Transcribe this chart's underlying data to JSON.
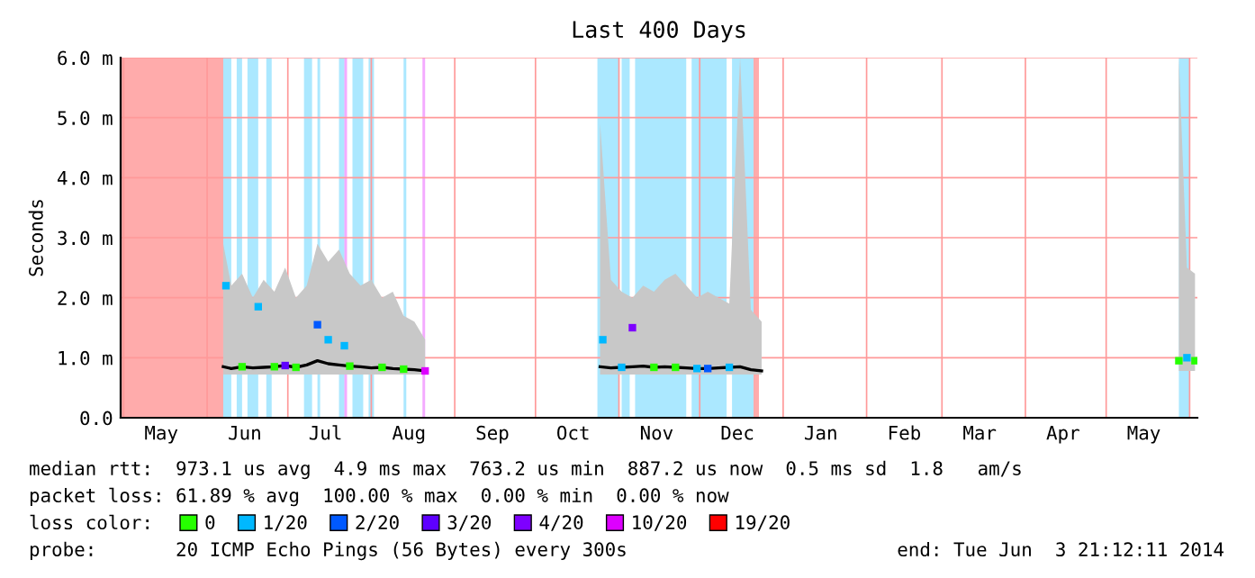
{
  "chart_data": {
    "type": "line",
    "title": "Last 400 Days",
    "ylabel": "Seconds",
    "xlim": [
      "2013-04-29T21:12",
      "2014-06-03T21:12"
    ],
    "xticks": [
      {
        "value": "2013-05-01",
        "label": null
      },
      {
        "value": "2013-05-15",
        "label": "May"
      },
      {
        "value": "2013-06-01",
        "label": null
      },
      {
        "value": "2013-06-15",
        "label": "Jun"
      },
      {
        "value": "2013-07-01",
        "label": null
      },
      {
        "value": "2013-07-15",
        "label": "Jul"
      },
      {
        "value": "2013-08-01",
        "label": null
      },
      {
        "value": "2013-08-15",
        "label": "Aug"
      },
      {
        "value": "2013-09-01",
        "label": null
      },
      {
        "value": "2013-09-15",
        "label": "Sep"
      },
      {
        "value": "2013-10-01",
        "label": null
      },
      {
        "value": "2013-10-15",
        "label": "Oct"
      },
      {
        "value": "2013-11-01",
        "label": null
      },
      {
        "value": "2013-11-15",
        "label": "Nov"
      },
      {
        "value": "2013-12-01",
        "label": null
      },
      {
        "value": "2013-12-15",
        "label": "Dec"
      },
      {
        "value": "2014-01-01",
        "label": null
      },
      {
        "value": "2014-01-15",
        "label": "Jan"
      },
      {
        "value": "2014-02-01",
        "label": null
      },
      {
        "value": "2014-02-15",
        "label": "Feb"
      },
      {
        "value": "2014-03-01",
        "label": null
      },
      {
        "value": "2014-03-15",
        "label": "Mar"
      },
      {
        "value": "2014-04-01",
        "label": null
      },
      {
        "value": "2014-04-15",
        "label": "Apr"
      },
      {
        "value": "2014-05-01",
        "label": null
      },
      {
        "value": "2014-05-15",
        "label": "May"
      },
      {
        "value": "2014-06-01",
        "label": null
      }
    ],
    "ylim": [
      0,
      6
    ],
    "yticks": [
      {
        "value": 0,
        "label": "0.0"
      },
      {
        "value": 1,
        "label": "1.0 m"
      },
      {
        "value": 2,
        "label": "2.0 m"
      },
      {
        "value": 3,
        "label": "3.0 m"
      },
      {
        "value": 4,
        "label": "4.0 m"
      },
      {
        "value": 5,
        "label": "5.0 m"
      },
      {
        "value": 6,
        "label": "6.0 m"
      }
    ],
    "grid": true,
    "legend": "bottom",
    "series": [
      {
        "color": "#000000",
        "marker": "none",
        "line_style": "solid",
        "x": [
          "2013-06-07",
          "2013-06-10",
          "2013-06-14",
          "2013-06-18",
          "2013-06-22",
          "2013-06-26",
          "2013-06-30",
          "2013-07-04",
          "2013-07-08",
          "2013-07-12",
          "2013-07-16",
          "2013-07-20",
          "2013-07-24",
          "2013-07-28",
          "2013-08-01",
          "2013-08-05",
          "2013-08-09",
          "2013-08-13",
          "2013-08-17",
          "2013-08-21",
          "2013-09-15",
          "2013-10-25",
          "2013-10-29",
          "2013-11-02",
          "2013-11-06",
          "2013-11-10",
          "2013-11-14",
          "2013-11-18",
          "2013-11-22",
          "2013-11-26",
          "2013-11-30",
          "2013-12-04",
          "2013-12-08",
          "2013-12-12",
          "2013-12-16",
          "2013-12-20",
          "2013-12-24",
          "2014-03-01",
          "2014-05-28",
          "2014-05-31",
          "2014-06-03"
        ],
        "values": [
          0.85,
          0.82,
          0.85,
          0.83,
          0.84,
          0.85,
          0.87,
          0.84,
          0.88,
          0.95,
          0.9,
          0.88,
          0.86,
          0.85,
          0.83,
          0.84,
          0.82,
          0.81,
          0.8,
          0.78,
          null,
          0.85,
          0.83,
          0.84,
          0.85,
          0.86,
          0.84,
          0.85,
          0.84,
          0.83,
          0.82,
          0.82,
          0.83,
          0.84,
          0.85,
          0.8,
          0.78,
          null,
          null,
          null,
          null
        ],
        "lower": [
          0.72,
          0.72,
          0.72,
          0.72,
          0.72,
          0.72,
          0.72,
          0.72,
          0.72,
          0.72,
          0.72,
          0.72,
          0.72,
          0.72,
          0.72,
          0.72,
          0.72,
          0.72,
          0.72,
          0.72,
          null,
          0.72,
          0.72,
          0.72,
          0.72,
          0.72,
          0.72,
          0.72,
          0.72,
          0.72,
          0.72,
          0.72,
          0.72,
          0.72,
          0.72,
          0.72,
          0.72,
          null,
          0.78,
          0.78,
          0.78
        ],
        "upper": [
          2.9,
          2.2,
          2.4,
          2.0,
          2.3,
          2.1,
          2.5,
          2.0,
          2.2,
          2.9,
          2.6,
          2.8,
          2.4,
          2.2,
          2.3,
          2.0,
          2.1,
          1.7,
          1.6,
          1.3,
          null,
          4.9,
          2.3,
          2.1,
          2.0,
          2.2,
          2.1,
          2.3,
          2.4,
          2.2,
          2.0,
          2.1,
          2.0,
          1.9,
          6.0,
          1.8,
          1.6,
          null,
          6.0,
          2.5,
          2.4
        ]
      },
      {
        "type": "scatter",
        "name": "0",
        "color": "#26ff00",
        "marker": "square",
        "x": [
          "2013-06-14",
          "2013-06-26",
          "2013-07-04",
          "2013-07-24",
          "2013-08-05",
          "2013-08-13",
          "2013-11-14",
          "2013-11-22",
          "2014-05-28",
          "2014-06-03"
        ],
        "values": [
          0.85,
          0.85,
          0.84,
          0.86,
          0.84,
          0.81,
          0.84,
          0.84,
          0.95,
          0.95
        ]
      },
      {
        "type": "scatter",
        "name": "1/20",
        "color": "#00b8ff",
        "marker": "square",
        "x": [
          "2013-06-08",
          "2013-06-20",
          "2013-07-16",
          "2013-07-22",
          "2013-10-26",
          "2013-11-02",
          "2013-11-30",
          "2013-12-12",
          "2014-05-31"
        ],
        "values": [
          2.2,
          1.85,
          1.3,
          1.2,
          1.3,
          0.84,
          0.82,
          0.84,
          1.0
        ]
      },
      {
        "type": "scatter",
        "name": "2/20",
        "color": "#0059ff",
        "marker": "square",
        "x": [
          "2013-07-12",
          "2013-12-04"
        ],
        "values": [
          1.55,
          0.82
        ]
      },
      {
        "type": "scatter",
        "name": "3/20",
        "color": "#5e00ff",
        "marker": "square",
        "x": [
          "2013-06-30"
        ],
        "values": [
          0.87
        ]
      },
      {
        "type": "scatter",
        "name": "4/20",
        "color": "#7e00ff",
        "marker": "square",
        "x": [
          "2013-11-06"
        ],
        "values": [
          1.5
        ]
      },
      {
        "type": "scatter",
        "name": "10/20",
        "color": "#dd00ff",
        "marker": "square",
        "x": [
          "2013-08-21"
        ],
        "values": [
          0.78
        ]
      }
    ],
    "bands": [
      {
        "axis": "x",
        "from": "2013-04-29T21:12",
        "to": "2013-06-07",
        "label": "19/20",
        "color": "#ff0000"
      },
      {
        "axis": "x",
        "from": "2013-12-21",
        "to": "2013-12-23",
        "color": "#ff0000"
      },
      {
        "axis": "x",
        "from": "2013-06-07",
        "to": "2013-06-10",
        "color": "#00b8ff"
      },
      {
        "axis": "x",
        "from": "2013-06-12",
        "to": "2013-06-14",
        "color": "#00b8ff"
      },
      {
        "axis": "x",
        "from": "2013-06-16",
        "to": "2013-06-20",
        "color": "#00b8ff"
      },
      {
        "axis": "x",
        "from": "2013-06-23",
        "to": "2013-06-25",
        "color": "#00b8ff"
      },
      {
        "axis": "x",
        "from": "2013-07-07",
        "to": "2013-07-10",
        "color": "#00b8ff"
      },
      {
        "axis": "x",
        "from": "2013-07-12",
        "to": "2013-07-13",
        "color": "#00b8ff"
      },
      {
        "axis": "x",
        "from": "2013-07-20",
        "to": "2013-07-22",
        "color": "#00b8ff"
      },
      {
        "axis": "x",
        "from": "2013-07-25",
        "to": "2013-07-29",
        "color": "#00b8ff"
      },
      {
        "axis": "x",
        "from": "2013-07-31",
        "to": "2013-08-02",
        "color": "#00b8ff"
      },
      {
        "axis": "x",
        "from": "2013-08-13",
        "to": "2013-08-14",
        "color": "#00b8ff"
      },
      {
        "axis": "x",
        "from": "2013-07-22",
        "to": "2013-07-23",
        "color": "#dd00ff"
      },
      {
        "axis": "x",
        "from": "2013-08-20",
        "to": "2013-08-21",
        "color": "#dd00ff"
      },
      {
        "axis": "x",
        "from": "2013-10-24",
        "to": "2013-11-01",
        "color": "#00b8ff"
      },
      {
        "axis": "x",
        "from": "2013-11-02",
        "to": "2013-11-05",
        "color": "#00b8ff"
      },
      {
        "axis": "x",
        "from": "2013-11-07",
        "to": "2013-11-26",
        "color": "#00b8ff"
      },
      {
        "axis": "x",
        "from": "2013-11-28",
        "to": "2013-12-11",
        "color": "#00b8ff"
      },
      {
        "axis": "x",
        "from": "2013-12-13",
        "to": "2013-12-21",
        "color": "#00b8ff"
      },
      {
        "axis": "x",
        "from": "2014-05-28",
        "to": "2014-06-01",
        "color": "#00b8ff"
      }
    ],
    "annotations": [
      "median rtt:  973.1 us avg  4.9 ms max  763.2 us min  887.2 us now  0.5 ms sd  1.8   am/s",
      "packet loss: 61.89 % avg  100.00 % max  0.00 % min  0.00 % now",
      "loss color:",
      "probe:       20 ICMP Echo Pings (56 Bytes) every 300s",
      "end: Tue Jun  3 21:12:11 2014"
    ]
  }
}
